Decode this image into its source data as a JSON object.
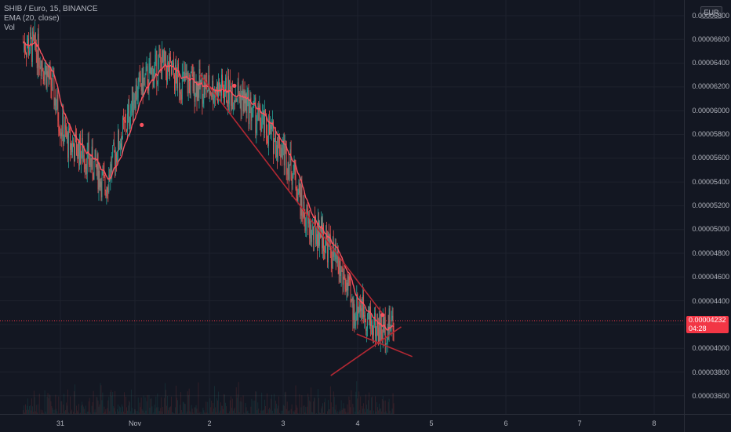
{
  "legend": {
    "symbol": "SHIB / Euro, 15, BINANCE",
    "ema": "EMA (20, close)",
    "vol": "Vol"
  },
  "price_axis": {
    "currency": "EUR",
    "ticks": [
      "0.00006800",
      "0.00006600",
      "0.00006400",
      "0.00006200",
      "0.00006000",
      "0.00005800",
      "0.00005600",
      "0.00005400",
      "0.00005200",
      "0.00005000",
      "0.00004800",
      "0.00004600",
      "0.00004400",
      "0.00004200",
      "0.00004000",
      "0.00003800",
      "0.00003600"
    ],
    "last_price": "0.00004232",
    "countdown": "04:28"
  },
  "time_axis": {
    "ticks": [
      "31",
      "Nov",
      "2",
      "3",
      "4",
      "5",
      "6",
      "7",
      "8"
    ]
  },
  "colors": {
    "background": "#131722",
    "up": "#26a69a",
    "down": "#ef5350",
    "ema": "#f7525f",
    "trendline": "#b22833",
    "price_label": "#f23645"
  },
  "chart_data": {
    "type": "candlestick",
    "series_ema_label": "EMA (20, close)",
    "ylim": [
      3.55e-05,
      6.86e-05
    ],
    "x": [
      "31",
      "Nov",
      "2",
      "3",
      "4",
      "5",
      "6",
      "7",
      "8"
    ],
    "close_path": [
      [
        30.5,
        6.58e-05
      ],
      [
        30.7,
        6.5e-05
      ],
      [
        30.9,
        6.18e-05
      ],
      [
        31.0,
        5.9e-05
      ],
      [
        31.1,
        5.73e-05
      ],
      [
        31.3,
        5.65e-05
      ],
      [
        31.5,
        5.5e-05
      ],
      [
        31.6,
        5.35e-05
      ],
      [
        31.8,
        5.75e-05
      ],
      [
        31.9,
        5.9e-05
      ],
      [
        32.0,
        6.15e-05
      ],
      [
        32.15,
        6.25e-05
      ],
      [
        32.35,
        6.4e-05
      ],
      [
        32.6,
        6.25e-05
      ],
      [
        32.9,
        6.2e-05
      ],
      [
        33.1,
        6.18e-05
      ],
      [
        33.4,
        6.15e-05
      ],
      [
        33.6,
        5.98e-05
      ],
      [
        33.8,
        5.83e-05
      ],
      [
        34.0,
        5.68e-05
      ],
      [
        34.15,
        5.48e-05
      ],
      [
        34.3,
        5.1e-05
      ],
      [
        34.4,
        4.95e-05
      ],
      [
        34.5,
        5e-05
      ],
      [
        34.7,
        4.75e-05
      ],
      [
        34.85,
        4.55e-05
      ],
      [
        34.95,
        4.3e-05
      ],
      [
        35.05,
        4.38e-05
      ],
      [
        35.2,
        4.2e-05
      ],
      [
        35.35,
        4.15e-05
      ],
      [
        35.5,
        4.23e-05
      ]
    ],
    "trendlines": [
      {
        "x": [
          32.88,
          35.35
        ],
        "y": [
          6.31e-05,
          4.29e-05
        ]
      },
      {
        "x": [
          34.65,
          35.6
        ],
        "y": [
          3.77e-05,
          4.18e-05
        ]
      },
      {
        "x": [
          35.0,
          35.75
        ],
        "y": [
          4.12e-05,
          3.93e-05
        ]
      }
    ],
    "markers": [
      [
        32.1,
        5.88e-05
      ],
      [
        33.35,
        6.21e-05
      ],
      [
        35.35,
        4.28e-05
      ]
    ]
  }
}
